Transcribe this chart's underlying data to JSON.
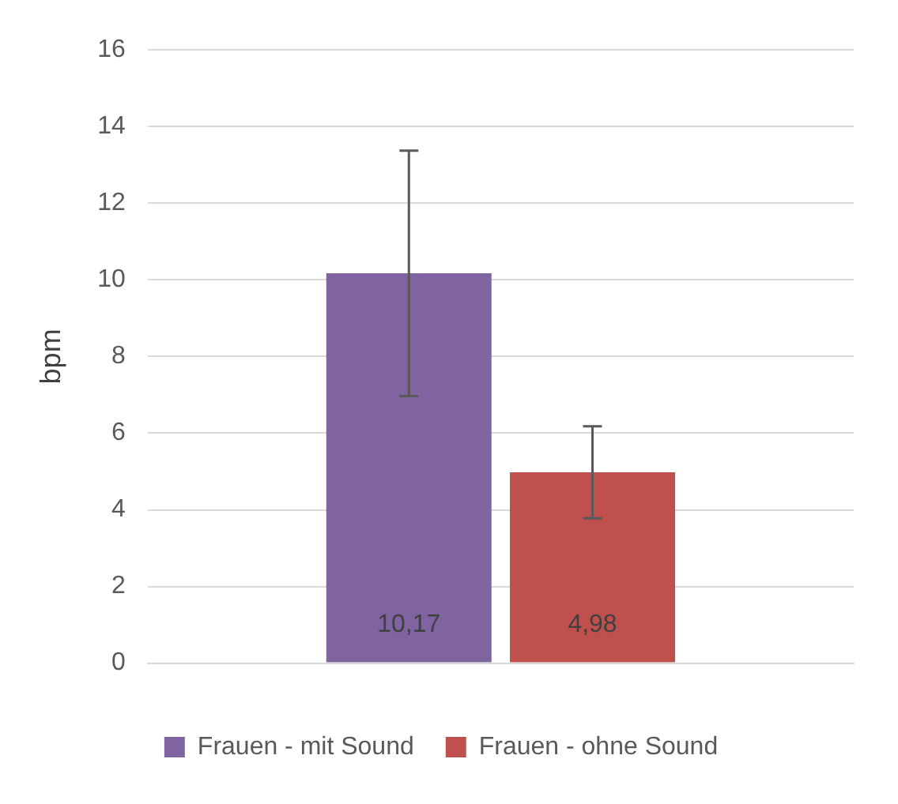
{
  "chart_data": {
    "type": "bar",
    "ylabel": "bpm",
    "categories": [
      null
    ],
    "series": [
      {
        "name": "Frauen - mit Sound",
        "color": "#8064a2",
        "values": [
          10.17
        ],
        "errors": [
          3.2
        ],
        "value_labels": [
          "10,17"
        ]
      },
      {
        "name": "Frauen - ohne Sound",
        "color": "#c0504d",
        "values": [
          4.98
        ],
        "errors": [
          1.2
        ],
        "value_labels": [
          "4,98"
        ]
      }
    ],
    "ylim": [
      0,
      16
    ],
    "yticks": [
      0,
      2,
      4,
      6,
      8,
      10,
      12,
      14,
      16
    ],
    "grid": "y",
    "legend": "bottom"
  }
}
